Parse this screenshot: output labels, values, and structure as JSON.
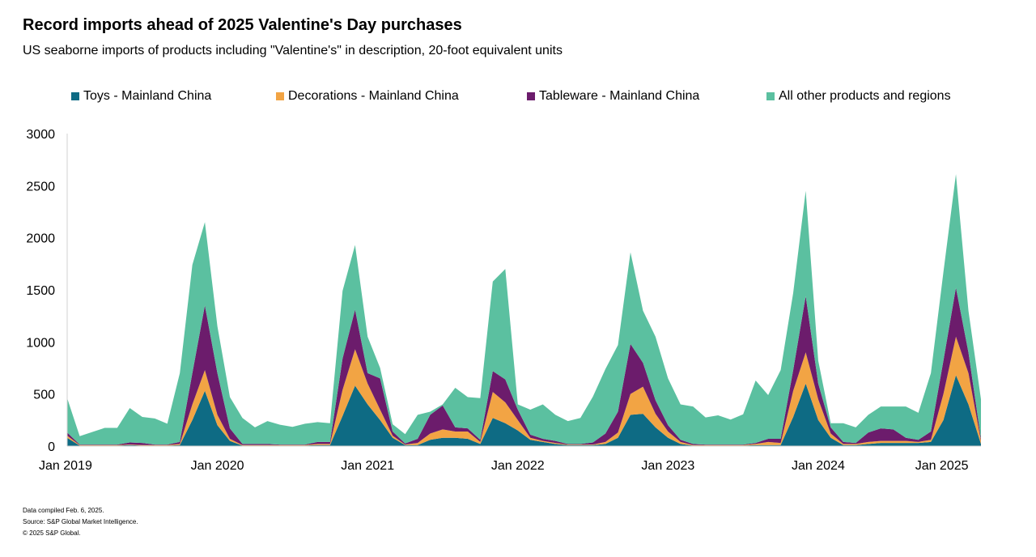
{
  "title": "Record imports ahead of 2025 Valentine's Day purchases",
  "subtitle": "US seaborne imports of products including \"Valentine's\" in description, 20-foot equivalent units",
  "legend": [
    {
      "label": "Toys - Mainland China",
      "color": "#0e6b84"
    },
    {
      "label": "Decorations - Mainland China",
      "color": "#f2a444"
    },
    {
      "label": "Tableware - Mainland China",
      "color": "#6c1c6c"
    },
    {
      "label": "All other products and regions",
      "color": "#5bc0a0"
    }
  ],
  "footer": {
    "line1": "Data compiled Feb. 6, 2025.",
    "line2": "Source: S&P Global Market Intelligence.",
    "line3": "© 2025 S&P Global."
  },
  "chart_data": {
    "type": "area",
    "stacked": true,
    "x_start": "Jan 2019",
    "frequency": "monthly",
    "x_tick_labels": [
      "Jan 2019",
      "Jan 2020",
      "Jan 2021",
      "Jan 2022",
      "Jan 2023",
      "Jan 2024",
      "Jan 2025"
    ],
    "ylim": [
      0,
      3000
    ],
    "y_ticks": [
      0,
      500,
      1000,
      1500,
      2000,
      2500,
      3000
    ],
    "series": [
      {
        "name": "Toys - Mainland China",
        "color": "#0e6b84",
        "values": [
          80,
          5,
          5,
          5,
          5,
          10,
          5,
          5,
          5,
          10,
          250,
          530,
          200,
          50,
          5,
          5,
          5,
          5,
          5,
          5,
          10,
          10,
          290,
          580,
          400,
          250,
          80,
          10,
          10,
          60,
          80,
          80,
          70,
          20,
          270,
          220,
          150,
          60,
          40,
          20,
          10,
          10,
          10,
          20,
          80,
          300,
          310,
          180,
          80,
          20,
          5,
          5,
          5,
          5,
          5,
          10,
          10,
          10,
          280,
          600,
          250,
          80,
          10,
          10,
          20,
          30,
          30,
          30,
          30,
          40,
          250,
          680,
          400,
          20
        ]
      },
      {
        "name": "Decorations - Mainland China",
        "color": "#f2a444",
        "values": [
          20,
          5,
          5,
          5,
          5,
          5,
          5,
          5,
          5,
          10,
          150,
          200,
          100,
          20,
          5,
          5,
          5,
          5,
          5,
          5,
          10,
          10,
          250,
          350,
          200,
          100,
          20,
          5,
          20,
          60,
          80,
          60,
          70,
          20,
          250,
          200,
          100,
          20,
          10,
          10,
          5,
          5,
          5,
          20,
          50,
          200,
          260,
          130,
          60,
          20,
          5,
          5,
          5,
          5,
          5,
          10,
          30,
          20,
          250,
          300,
          200,
          40,
          10,
          10,
          20,
          20,
          20,
          20,
          10,
          20,
          250,
          370,
          300,
          30
        ]
      },
      {
        "name": "Tableware - Mainland China",
        "color": "#6c1c6c",
        "values": [
          30,
          5,
          5,
          5,
          5,
          20,
          20,
          5,
          5,
          20,
          300,
          620,
          400,
          100,
          10,
          10,
          10,
          5,
          5,
          5,
          20,
          20,
          300,
          380,
          100,
          300,
          40,
          10,
          40,
          180,
          230,
          40,
          30,
          20,
          200,
          220,
          100,
          30,
          20,
          20,
          5,
          5,
          20,
          80,
          200,
          480,
          230,
          130,
          60,
          20,
          10,
          5,
          5,
          5,
          5,
          10,
          30,
          40,
          200,
          540,
          150,
          60,
          20,
          10,
          90,
          120,
          110,
          30,
          20,
          80,
          320,
          470,
          200,
          20
        ]
      },
      {
        "name": "All other products and regions",
        "color": "#5bc0a0",
        "values": [
          330,
          80,
          120,
          160,
          160,
          330,
          250,
          250,
          200,
          660,
          1040,
          800,
          450,
          300,
          250,
          160,
          220,
          190,
          170,
          200,
          190,
          180,
          650,
          620,
          350,
          100,
          70,
          90,
          230,
          30,
          10,
          380,
          300,
          400,
          860,
          1060,
          50,
          240,
          330,
          250,
          220,
          250,
          440,
          620,
          640,
          880,
          500,
          610,
          450,
          340,
          360,
          260,
          280,
          240,
          290,
          600,
          420,
          660,
          740,
          1010,
          220,
          40,
          180,
          150,
          170,
          210,
          220,
          300,
          260,
          560,
          850,
          1090,
          400,
          380
        ]
      }
    ]
  }
}
